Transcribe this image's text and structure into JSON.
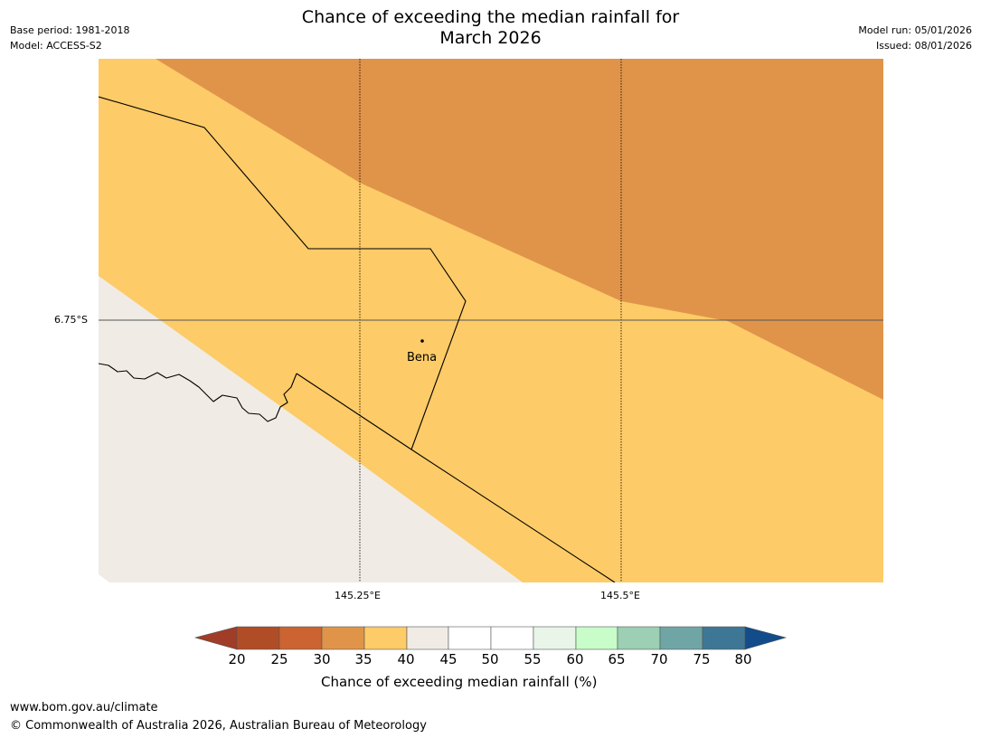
{
  "header": {
    "title_line1": "Chance of exceeding the median rainfall for",
    "title_line2": "March 2026",
    "base_period": "Base period: 1981-2018",
    "model": "Model: ACCESS-S2",
    "model_run": "Model run: 05/01/2026",
    "issued": "Issued: 08/01/2026"
  },
  "map": {
    "lat_label": "6.75°S",
    "lon_labels": [
      "145.25°E",
      "145.5°E"
    ],
    "place": "Bena",
    "colors": {
      "band_30_35": "#e0944a",
      "band_35_40": "#fdcb67",
      "band_40_45": "#f0ebe5",
      "border": "#000000",
      "grid": "#000000"
    }
  },
  "colorbar": {
    "label": "Chance of exceeding median rainfall (%)",
    "ticks": [
      "20",
      "25",
      "30",
      "35",
      "40",
      "45",
      "50",
      "55",
      "60",
      "65",
      "70",
      "75",
      "80"
    ],
    "colors": [
      "#a03c28",
      "#b14d26",
      "#cb6430",
      "#e0944a",
      "#fdcb67",
      "#f0ebe5",
      "#ffffff",
      "#ffffff",
      "#e8f5e8",
      "#c8fcc8",
      "#9ccfb4",
      "#6fa5a5",
      "#3e7796",
      "#124c8a"
    ]
  },
  "footer": {
    "url": "www.bom.gov.au/climate",
    "copyright": "© Commonwealth of Australia 2026, Australian Bureau of Meteorology"
  }
}
